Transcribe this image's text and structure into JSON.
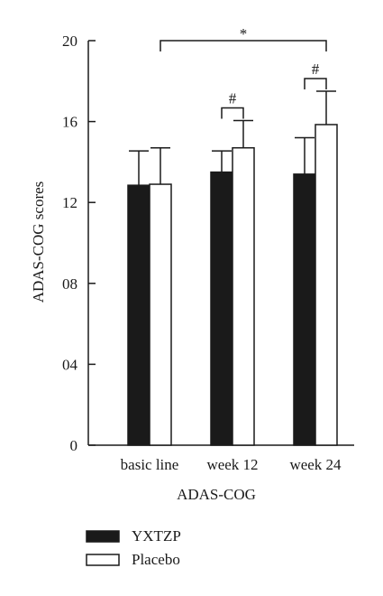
{
  "chart_data": {
    "type": "bar",
    "categories": [
      "basic line",
      "week 12",
      "week 24"
    ],
    "series": [
      {
        "name": "YXTZP",
        "color": "#1a1a1a",
        "values": [
          12.85,
          13.5,
          13.4
        ],
        "errors": [
          1.7,
          1.05,
          1.8
        ]
      },
      {
        "name": "Placebo",
        "color": "#ffffff",
        "values": [
          12.9,
          14.7,
          15.85
        ],
        "errors": [
          1.8,
          1.35,
          1.65
        ]
      }
    ],
    "xlabel": "ADAS-COG",
    "ylabel": "ADAS-COG scores",
    "ylim": [
      0,
      20
    ],
    "yticks": [
      0,
      4,
      8,
      12,
      16,
      20
    ],
    "ytick_labels": [
      "0",
      "04",
      "08",
      "12",
      "16",
      "20"
    ],
    "grid": false,
    "legend_placement": "bottom-left",
    "annotations": [
      {
        "label": "#",
        "category": "week 12",
        "between": [
          "YXTZP",
          "Placebo"
        ]
      },
      {
        "label": "#",
        "category": "week 24",
        "between": [
          "YXTZP",
          "Placebo"
        ]
      },
      {
        "label": "*",
        "from": "basic line",
        "to": "week 24",
        "series": "Placebo"
      }
    ]
  }
}
